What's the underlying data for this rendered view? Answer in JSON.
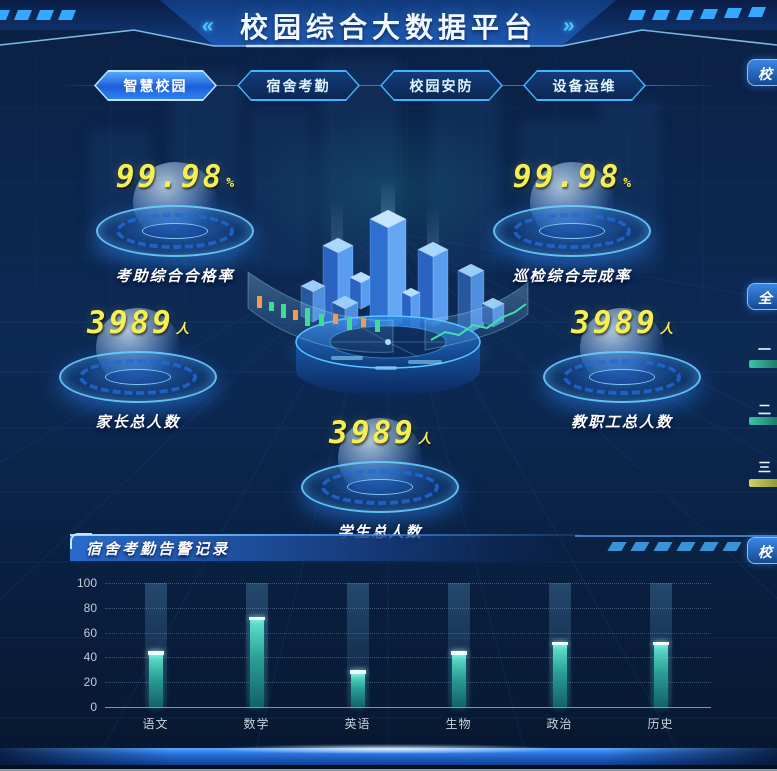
{
  "header": {
    "title": "校园综合大数据平台",
    "left_arrow": "«",
    "right_arrow": "»"
  },
  "tabs": [
    {
      "label": "智慧校园",
      "active": true
    },
    {
      "label": "宿舍考勤",
      "active": false
    },
    {
      "label": "校园安防",
      "active": false
    },
    {
      "label": "设备运维",
      "active": false
    }
  ],
  "stats": [
    {
      "value": "99.98",
      "unit": "%",
      "label": "考助综合合格率"
    },
    {
      "value": "99.98",
      "unit": "%",
      "label": "巡检综合完成率"
    },
    {
      "value": "3989",
      "unit": "人",
      "label": "家长总人数"
    },
    {
      "value": "3989",
      "unit": "人",
      "label": "教职工总人数"
    },
    {
      "value": "3989",
      "unit": "人",
      "label": "学生总人数"
    }
  ],
  "alarm_panel": {
    "title": "宿舍考勤告警记录"
  },
  "right_edge": {
    "top_panel_text": "校",
    "middle_panel_text": "全",
    "bottom_panel_text": "校",
    "rank_labels": [
      "一",
      "二",
      "三"
    ]
  },
  "chart_data": {
    "type": "bar",
    "title": "宿舍考勤告警记录",
    "categories": [
      "语文",
      "数学",
      "英语",
      "生物",
      "政治",
      "历史"
    ],
    "values": [
      42,
      70,
      27,
      42,
      50,
      50
    ],
    "xlabel": "",
    "ylabel": "",
    "ylim": [
      0,
      100
    ],
    "ytick_step": 20,
    "grid": "dotted-horizontal",
    "legend": "none",
    "bar_color": "#3fd0bd",
    "bar_cap_color": "#ffffff"
  },
  "colors": {
    "background": "#0a1d3c",
    "accent_cyan": "#3fb6ff",
    "number_yellow": "#f4ef52",
    "bar_teal": "#3fd0bd",
    "rank_bar_olive": "#b9c24d",
    "footer_blue": "#2a72dc"
  }
}
